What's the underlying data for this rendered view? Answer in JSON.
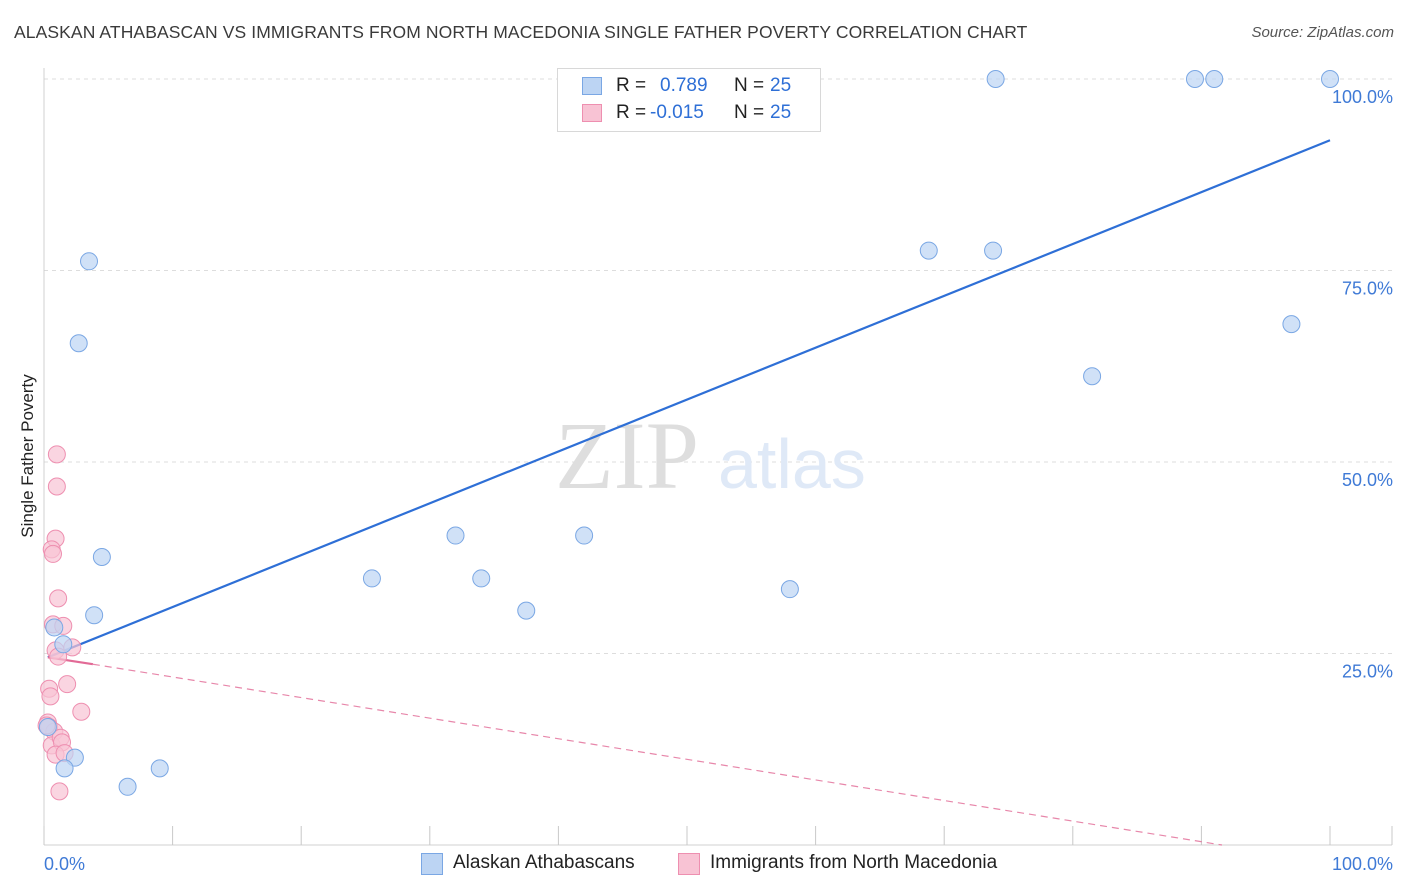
{
  "title": "ALASKAN ATHABASCAN VS IMMIGRANTS FROM NORTH MACEDONIA SINGLE FATHER POVERTY CORRELATION CHART",
  "source": "Source: ZipAtlas.com",
  "watermark": {
    "zip": "ZIP",
    "atlas": "atlas"
  },
  "legend": {
    "r_label": "R =",
    "n_label": "N =",
    "series": [
      {
        "r": "0.789",
        "n": "25"
      },
      {
        "r": "-0.015",
        "n": "25"
      }
    ]
  },
  "colors": {
    "blue_fill": "#bcd4f3",
    "blue_stroke": "#7aa7e4",
    "blue_line": "#2e6fd6",
    "pink_fill": "#f8c3d4",
    "pink_stroke": "#ee8fb0",
    "pink_line": "#e26a96",
    "tick_text": "#3f7ad6",
    "grid": "#dddddd"
  },
  "chart_data": {
    "type": "scatter",
    "title": "ALASKAN ATHABASCAN VS IMMIGRANTS FROM NORTH MACEDONIA SINGLE FATHER POVERTY CORRELATION CHART",
    "xlabel": "",
    "ylabel": "Single Father Poverty",
    "xlim": [
      0,
      100
    ],
    "ylim": [
      0,
      102
    ],
    "x_tick_labels": [
      {
        "value": 0,
        "label": "0.0%"
      },
      {
        "value": 100,
        "label": "100.0%"
      }
    ],
    "y_ticks": [
      {
        "value": 25,
        "label": "25.0%"
      },
      {
        "value": 50,
        "label": "50.0%"
      },
      {
        "value": 75,
        "label": "75.0%"
      },
      {
        "value": 100,
        "label": "100.0%"
      }
    ],
    "series": [
      {
        "name": "Alaskan Athabascans",
        "color": "#7aa7e4",
        "points": [
          [
            74.0,
            100.0
          ],
          [
            89.5,
            100.0
          ],
          [
            91.0,
            100.0
          ],
          [
            100.0,
            100.0
          ],
          [
            3.5,
            76.2
          ],
          [
            68.8,
            77.6
          ],
          [
            73.8,
            77.6
          ],
          [
            2.7,
            65.5
          ],
          [
            97.0,
            68.0
          ],
          [
            81.5,
            61.2
          ],
          [
            4.5,
            37.6
          ],
          [
            25.5,
            34.8
          ],
          [
            32.0,
            40.4
          ],
          [
            34.0,
            34.8
          ],
          [
            37.5,
            30.6
          ],
          [
            42.0,
            40.4
          ],
          [
            58.0,
            33.4
          ],
          [
            3.9,
            30.0
          ],
          [
            0.8,
            28.4
          ],
          [
            1.5,
            26.2
          ],
          [
            2.4,
            11.4
          ],
          [
            1.6,
            10.0
          ],
          [
            6.5,
            7.6
          ],
          [
            9.0,
            10.0
          ],
          [
            0.3,
            15.4
          ]
        ],
        "trend": {
          "x": [
            0.3,
            100
          ],
          "y": [
            24.5,
            92.0
          ],
          "style": "solid"
        }
      },
      {
        "name": "Immigrants from North Macedonia",
        "color": "#ee8fb0",
        "points": [
          [
            1.0,
            51.0
          ],
          [
            1.0,
            46.8
          ],
          [
            0.9,
            40.0
          ],
          [
            0.6,
            38.6
          ],
          [
            0.7,
            38.0
          ],
          [
            1.1,
            32.2
          ],
          [
            0.7,
            28.8
          ],
          [
            1.5,
            28.6
          ],
          [
            0.9,
            25.4
          ],
          [
            2.2,
            25.8
          ],
          [
            1.1,
            24.6
          ],
          [
            1.8,
            21.0
          ],
          [
            0.4,
            20.4
          ],
          [
            0.5,
            19.4
          ],
          [
            2.9,
            17.4
          ],
          [
            0.3,
            16.0
          ],
          [
            0.4,
            15.4
          ],
          [
            0.8,
            14.8
          ],
          [
            0.6,
            13.0
          ],
          [
            1.3,
            14.0
          ],
          [
            0.2,
            15.6
          ],
          [
            1.4,
            13.4
          ],
          [
            0.9,
            11.8
          ],
          [
            1.6,
            12.0
          ],
          [
            1.2,
            7.0
          ]
        ],
        "trend": {
          "x": [
            0.3,
            3.8
          ],
          "y": [
            24.5,
            23.6
          ],
          "style": "solid",
          "extended": {
            "x": [
              3.8,
              91.6
            ],
            "y": [
              23.6,
              0.0
            ],
            "style": "dashed"
          }
        }
      }
    ]
  }
}
